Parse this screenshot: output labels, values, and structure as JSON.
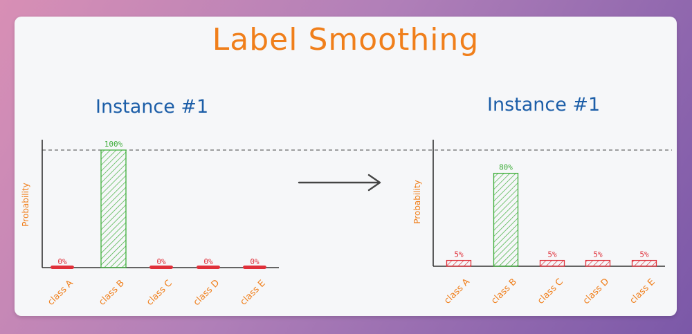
{
  "title": "Label Smoothing",
  "arrow_label": "",
  "colors": {
    "title": "#f07f1b",
    "subtitle": "#1c5ea8",
    "axis_text": "#f07f1b",
    "green_bar": "#3fae3a",
    "red_bar": "#e0303a"
  },
  "chart_data": [
    {
      "type": "bar",
      "title": "Instance #1",
      "ylabel": "Probability",
      "xlabel": "",
      "categories": [
        "class A",
        "class B",
        "class C",
        "class D",
        "class E"
      ],
      "values": [
        0,
        100,
        0,
        0,
        0
      ],
      "value_labels": [
        "0%",
        "100%",
        "0%",
        "0%",
        "0%"
      ],
      "ylim": [
        0,
        100
      ],
      "reference_line": 100
    },
    {
      "type": "bar",
      "title": "Instance #1",
      "ylabel": "Probability",
      "xlabel": "",
      "categories": [
        "class A",
        "class B",
        "class C",
        "class D",
        "class E"
      ],
      "values": [
        5,
        80,
        5,
        5,
        5
      ],
      "value_labels": [
        "5%",
        "80%",
        "5%",
        "5%",
        "5%"
      ],
      "ylim": [
        0,
        100
      ],
      "reference_line": 100
    }
  ]
}
